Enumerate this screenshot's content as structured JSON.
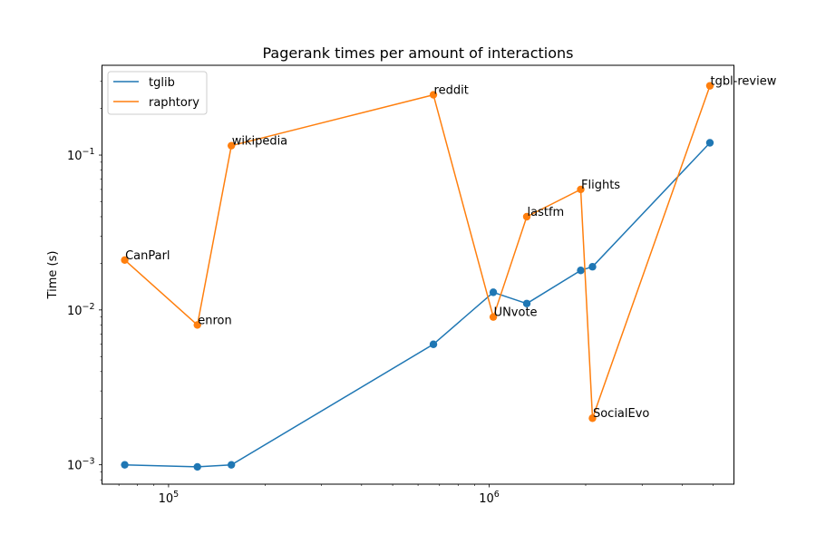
{
  "chart_data": {
    "type": "line",
    "title": "Pagerank times per amount of interactions",
    "xlabel": "",
    "ylabel": "Time (s)",
    "xscale": "log",
    "yscale": "log",
    "xlim": [
      62000,
      5800000
    ],
    "ylim": [
      0.00075,
      0.38
    ],
    "grid": false,
    "legend_position": "top-left",
    "x_major_ticks": [
      {
        "value": 100000,
        "base": "10",
        "exp": "5"
      },
      {
        "value": 1000000,
        "base": "10",
        "exp": "6"
      }
    ],
    "y_major_ticks": [
      {
        "value": 0.001,
        "base": "10",
        "exp": "−3"
      },
      {
        "value": 0.01,
        "base": "10",
        "exp": "−2"
      },
      {
        "value": 0.1,
        "base": "10",
        "exp": "−1"
      }
    ],
    "series": [
      {
        "name": "tglib",
        "color": "#1f77b4",
        "points": [
          {
            "x": 73000,
            "y": 0.001
          },
          {
            "x": 123000,
            "y": 0.00097
          },
          {
            "x": 157000,
            "y": 0.001
          },
          {
            "x": 670000,
            "y": 0.006
          },
          {
            "x": 1030000,
            "y": 0.013
          },
          {
            "x": 1310000,
            "y": 0.011
          },
          {
            "x": 1930000,
            "y": 0.018
          },
          {
            "x": 2100000,
            "y": 0.019
          },
          {
            "x": 4880000,
            "y": 0.12
          }
        ]
      },
      {
        "name": "raphtory",
        "color": "#ff7f0e",
        "points": [
          {
            "x": 73000,
            "y": 0.021,
            "label": "CanParl"
          },
          {
            "x": 123000,
            "y": 0.008,
            "label": "enron"
          },
          {
            "x": 157000,
            "y": 0.115,
            "label": "wikipedia"
          },
          {
            "x": 670000,
            "y": 0.245,
            "label": "reddit"
          },
          {
            "x": 1030000,
            "y": 0.009,
            "label": "UNvote"
          },
          {
            "x": 1310000,
            "y": 0.04,
            "label": "lastfm"
          },
          {
            "x": 1930000,
            "y": 0.06,
            "label": "Flights"
          },
          {
            "x": 2100000,
            "y": 0.002,
            "label": "SocialEvo"
          },
          {
            "x": 4880000,
            "y": 0.28,
            "label": "tgbl-review"
          }
        ]
      }
    ]
  }
}
